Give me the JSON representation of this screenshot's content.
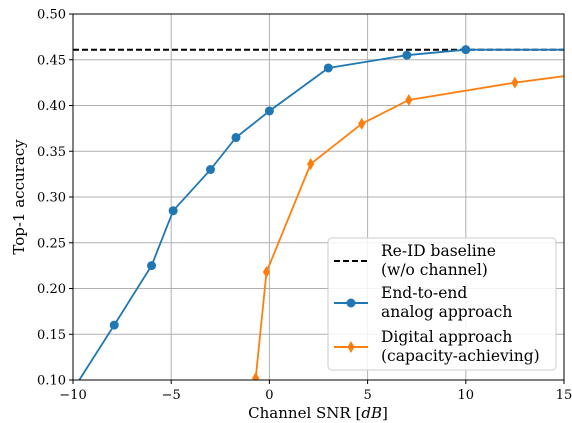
{
  "chart_data": {
    "type": "line",
    "xlabel": "Channel SNR [",
    "xlabel_unit": "dB",
    "xlabel_close": "]",
    "ylabel": "Top-1 accuracy",
    "xlim": [
      -10,
      15
    ],
    "ylim": [
      0.1,
      0.5
    ],
    "xticks": [
      -10,
      -5,
      0,
      5,
      10,
      15
    ],
    "xtick_labels": [
      "−10",
      "−5",
      "0",
      "5",
      "10",
      "15"
    ],
    "yticks": [
      0.1,
      0.15,
      0.2,
      0.25,
      0.3,
      0.35,
      0.4,
      0.45,
      0.5
    ],
    "ytick_labels": [
      "0.10",
      "0.15",
      "0.20",
      "0.25",
      "0.30",
      "0.35",
      "0.40",
      "0.45",
      "0.50"
    ],
    "grid": true,
    "legend_position": "lower-right",
    "series": [
      {
        "name_lines": [
          "Re-ID baseline",
          "(w/o channel)"
        ],
        "style": "dashed",
        "color": "#000000",
        "marker": "none",
        "x": [
          -10,
          15
        ],
        "y": [
          0.461,
          0.461
        ]
      },
      {
        "name_lines": [
          "End-to-end",
          "analog approach"
        ],
        "style": "solid",
        "color": "#1f77b4",
        "marker": "circle",
        "x": [
          -9.8,
          -7.9,
          -6.0,
          -4.9,
          -3.0,
          -1.7,
          0.0,
          3.0,
          7.0,
          10.0,
          15.0
        ],
        "y": [
          0.096,
          0.16,
          0.225,
          0.285,
          0.33,
          0.365,
          0.394,
          0.441,
          0.455,
          0.461,
          0.461
        ],
        "marker_points": [
          1,
          2,
          3,
          4,
          5,
          6,
          7,
          8,
          9
        ]
      },
      {
        "name_lines": [
          "Digital approach",
          "(capacity-achieving)"
        ],
        "style": "solid",
        "color": "#ff7f0e",
        "marker": "diamond",
        "x": [
          -0.7,
          -0.15,
          2.1,
          4.7,
          7.1,
          12.5,
          15.0
        ],
        "y": [
          0.102,
          0.218,
          0.336,
          0.38,
          0.406,
          0.425,
          0.432
        ],
        "marker_points": [
          0,
          1,
          2,
          3,
          4,
          5
        ]
      }
    ]
  }
}
